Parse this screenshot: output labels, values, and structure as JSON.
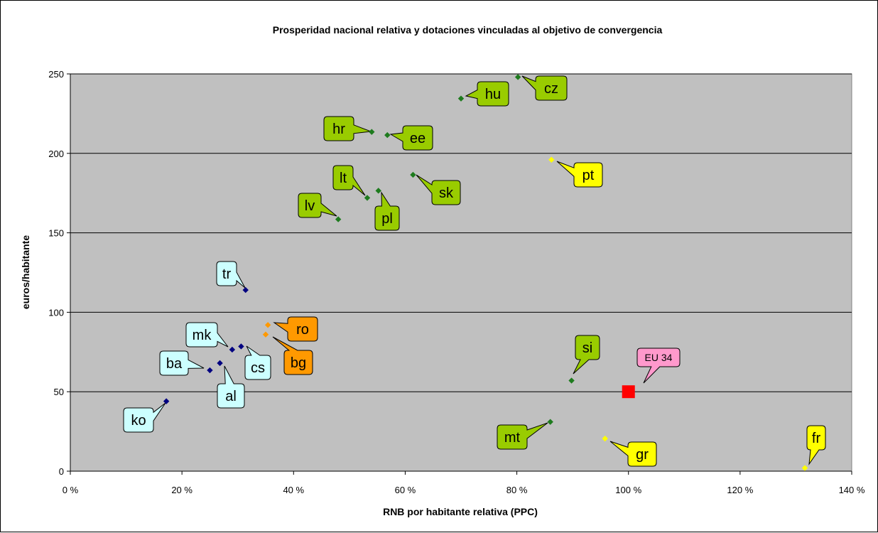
{
  "chart_data": {
    "type": "scatter",
    "title": "Prosperidad nacional relativa y dotaciones vinculadas al objetivo de convergencia",
    "xlabel": "RNB por habitante relativa (PPC)",
    "ylabel": "euros/habitante",
    "xlim": [
      0,
      140
    ],
    "ylim": [
      0,
      250
    ],
    "xticks": [
      {
        "value": 0,
        "label": "0 %"
      },
      {
        "value": 20,
        "label": "20 %"
      },
      {
        "value": 40,
        "label": "40 %"
      },
      {
        "value": 60,
        "label": "60 %"
      },
      {
        "value": 80,
        "label": "80 %"
      },
      {
        "value": 100,
        "label": "100 %"
      },
      {
        "value": 120,
        "label": "120 %"
      },
      {
        "value": 140,
        "label": "140 %"
      }
    ],
    "yticks": [
      {
        "value": 0,
        "label": "0"
      },
      {
        "value": 50,
        "label": "50"
      },
      {
        "value": 100,
        "label": "100"
      },
      {
        "value": 150,
        "label": "150"
      },
      {
        "value": 200,
        "label": "200"
      },
      {
        "value": 250,
        "label": "250"
      }
    ],
    "grid": "horizontal",
    "plot_background": "#c0c0c0",
    "colors": {
      "green": "#1e7b1e",
      "navy": "#000080",
      "orange": "#ff9900",
      "yellow": "#ffff00",
      "red": "#ff0000",
      "callout_green": "#99cc00",
      "callout_cyan": "#ccffff",
      "callout_orange": "#ff9900",
      "callout_yellow": "#ffff00",
      "callout_pink": "#ff99cc"
    },
    "points": [
      {
        "label": "cz",
        "x": 80.2,
        "y": 248,
        "group": "green"
      },
      {
        "label": "hu",
        "x": 70.0,
        "y": 234.5,
        "group": "green"
      },
      {
        "label": "hr",
        "x": 54.0,
        "y": 213.5,
        "group": "green"
      },
      {
        "label": "ee",
        "x": 56.8,
        "y": 211.5,
        "group": "green"
      },
      {
        "label": "sk",
        "x": 61.4,
        "y": 186.5,
        "group": "green"
      },
      {
        "label": "lt",
        "x": 53.2,
        "y": 172,
        "group": "green"
      },
      {
        "label": "pl",
        "x": 55.2,
        "y": 176.5,
        "group": "green"
      },
      {
        "label": "lv",
        "x": 48.0,
        "y": 158.5,
        "group": "green"
      },
      {
        "label": "si",
        "x": 89.8,
        "y": 57,
        "group": "green"
      },
      {
        "label": "mt",
        "x": 86.0,
        "y": 31,
        "group": "green"
      },
      {
        "label": "pt",
        "x": 86.2,
        "y": 196,
        "group": "yellow"
      },
      {
        "label": "gr",
        "x": 95.8,
        "y": 20.5,
        "group": "yellow"
      },
      {
        "label": "fr",
        "x": 131.6,
        "y": 2,
        "group": "yellow"
      },
      {
        "label": "ro",
        "x": 35.4,
        "y": 92,
        "group": "orange"
      },
      {
        "label": "bg",
        "x": 35.0,
        "y": 86,
        "group": "orange"
      },
      {
        "label": "tr",
        "x": 31.4,
        "y": 114,
        "group": "navy"
      },
      {
        "label": "mk",
        "x": 29.0,
        "y": 76.5,
        "group": "navy"
      },
      {
        "label": "cs",
        "x": 30.6,
        "y": 78.5,
        "group": "navy"
      },
      {
        "label": "ba",
        "x": 25.0,
        "y": 63.5,
        "group": "navy"
      },
      {
        "label": "al",
        "x": 26.8,
        "y": 68,
        "group": "navy"
      },
      {
        "label": "ko",
        "x": 17.2,
        "y": 44,
        "group": "navy"
      },
      {
        "label": "EU 34",
        "x": 100,
        "y": 50,
        "group": "red"
      }
    ]
  }
}
